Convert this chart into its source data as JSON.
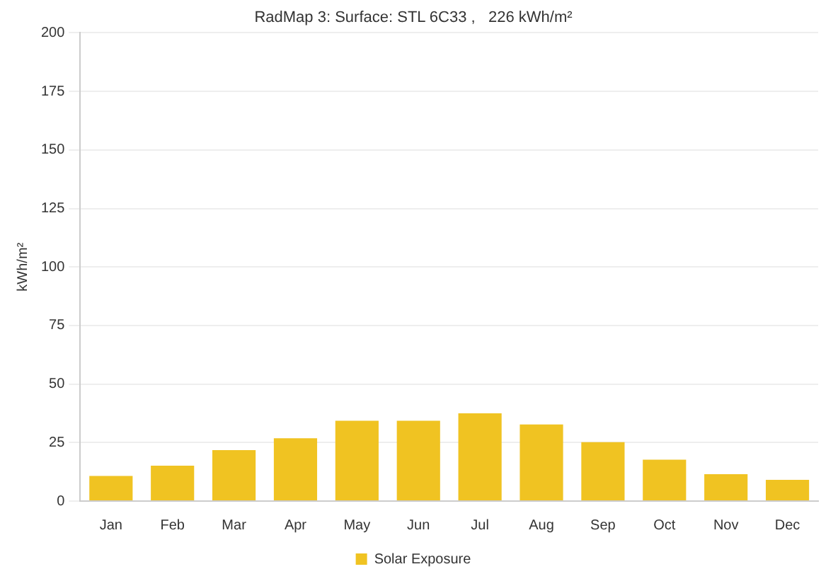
{
  "chart_data": {
    "type": "bar",
    "title": "RadMap 3: Surface: STL 6C33 ,   226 kWh/m²",
    "ylabel": "kWh/m²",
    "categories": [
      "Jan",
      "Feb",
      "Mar",
      "Apr",
      "May",
      "Jun",
      "Jul",
      "Aug",
      "Sep",
      "Oct",
      "Nov",
      "Dec"
    ],
    "series": [
      {
        "name": "Solar Exposure",
        "color": "#f0c322",
        "values": [
          10.7,
          15.1,
          21.8,
          26.8,
          34.3,
          34.3,
          37.5,
          32.7,
          25.2,
          17.7,
          11.5,
          9.1
        ]
      }
    ],
    "ylim": [
      0,
      200
    ],
    "yticks": [
      0,
      25,
      50,
      75,
      100,
      125,
      150,
      175,
      200
    ],
    "grid": "y",
    "legend": "bottom"
  }
}
